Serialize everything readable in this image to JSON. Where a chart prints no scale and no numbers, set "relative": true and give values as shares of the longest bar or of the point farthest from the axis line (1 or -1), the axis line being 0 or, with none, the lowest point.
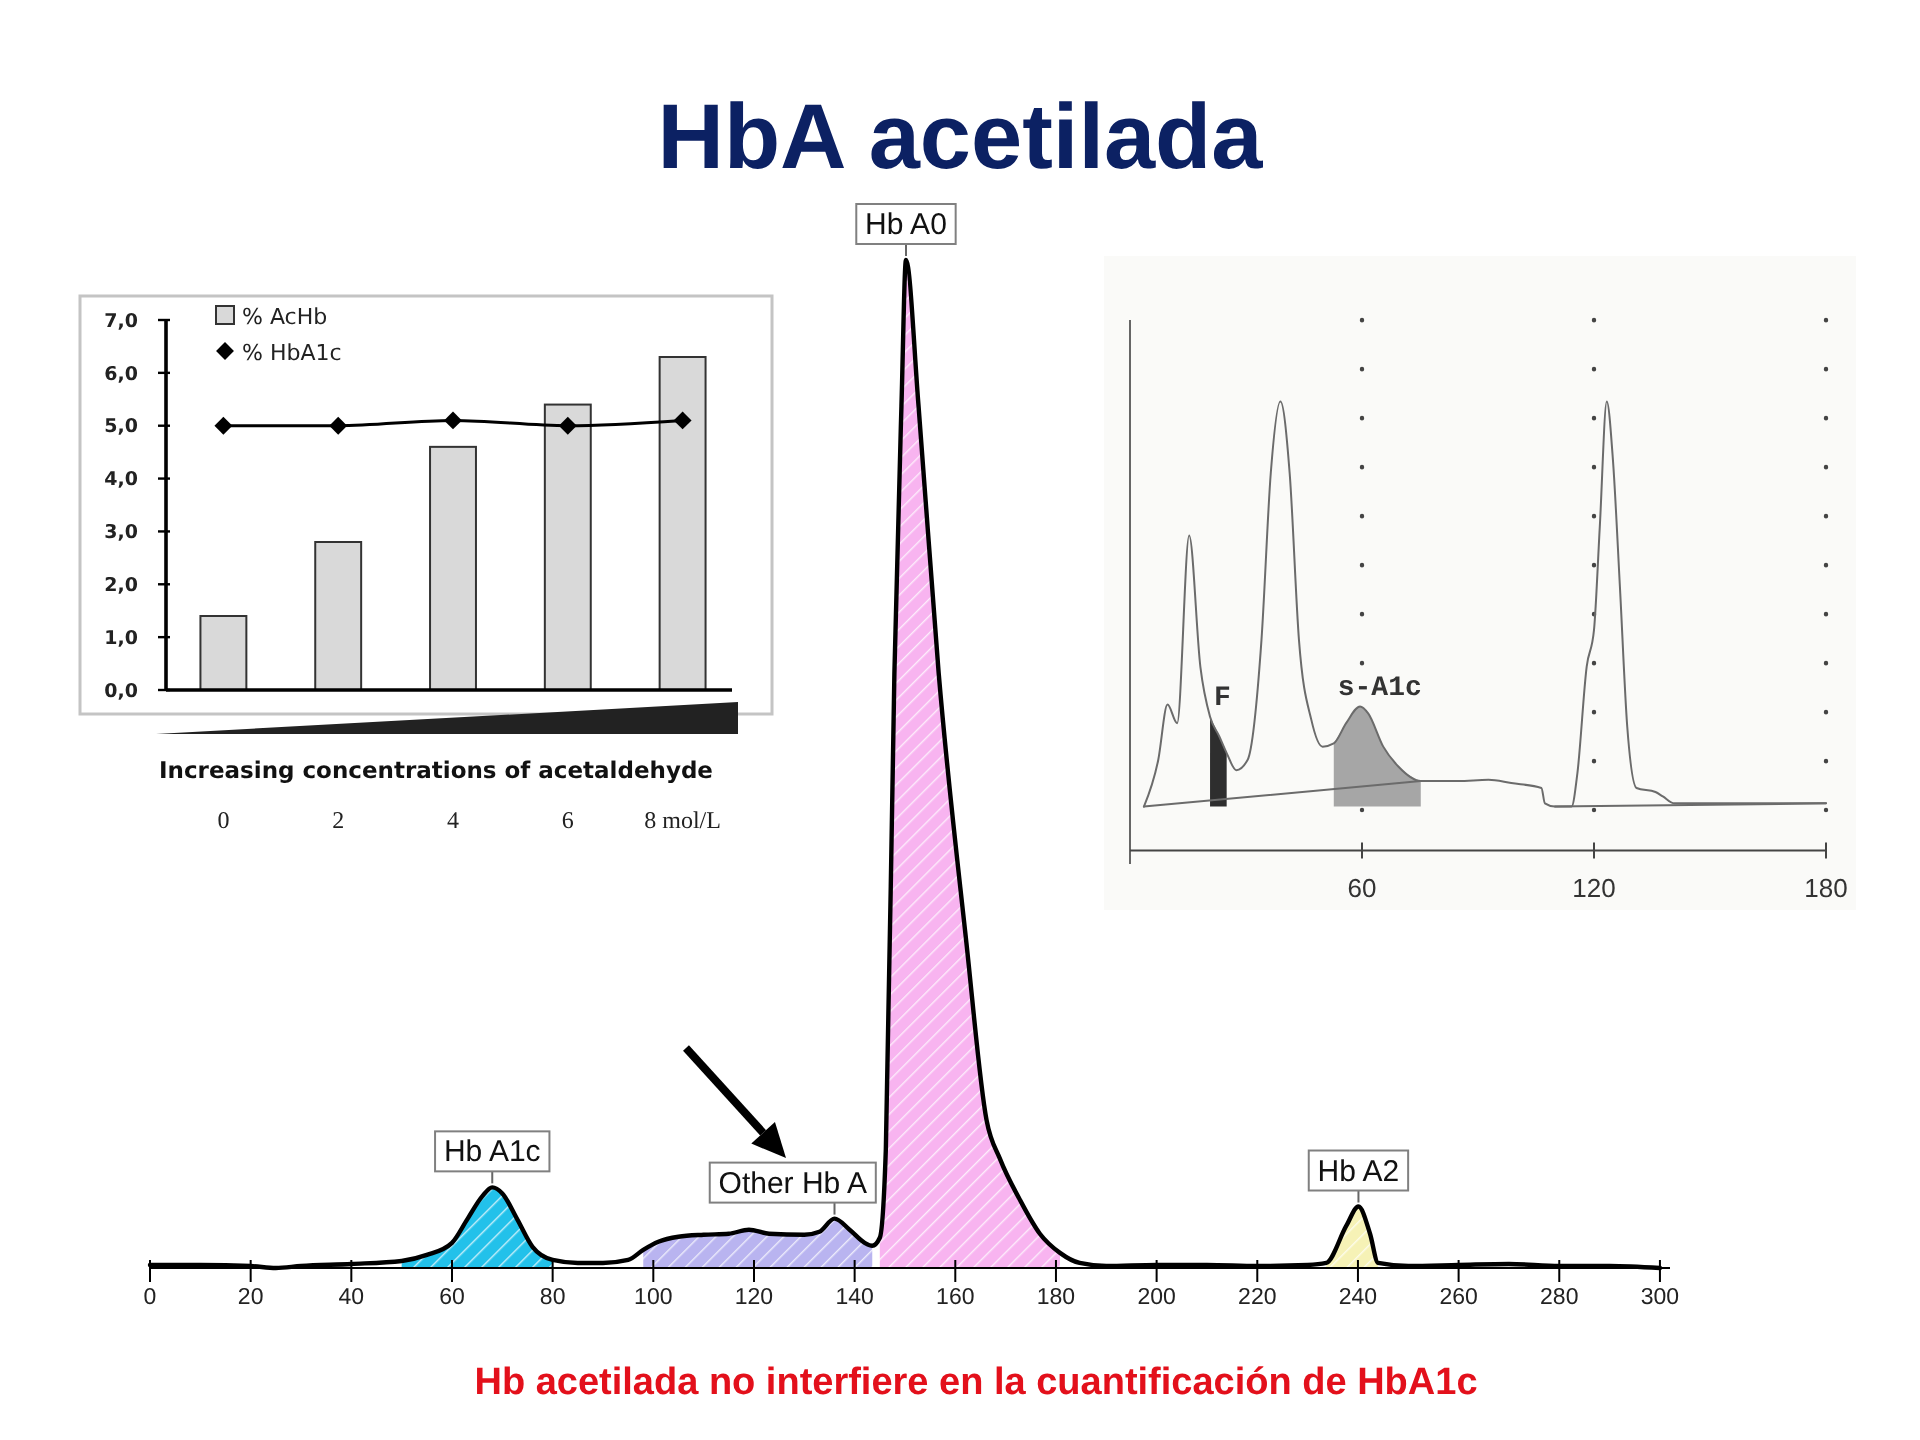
{
  "chart_data": [
    {
      "type": "bar",
      "xlabel": "Increasing concentrations of acetaldehyde",
      "categories": [
        "0",
        "2",
        "4",
        "6",
        "8 mol/L"
      ],
      "series": [
        {
          "name": "% AcHb",
          "color": "#d9d9d9",
          "values": [
            1.4,
            2.8,
            4.6,
            5.4,
            6.3
          ]
        },
        {
          "name": "% HbA1c",
          "type": "line",
          "color": "#000000",
          "values": [
            5.0,
            5.0,
            5.1,
            5.0,
            5.1
          ]
        }
      ],
      "ylim": [
        0,
        7
      ],
      "yticks": [
        {
          "value": 0,
          "label": "0,0"
        },
        {
          "value": 1,
          "label": "1,0"
        },
        {
          "value": 2,
          "label": "2,0"
        },
        {
          "value": 3,
          "label": "3,0"
        },
        {
          "value": 4,
          "label": "4,0"
        },
        {
          "value": 5,
          "label": "5,0"
        },
        {
          "value": 6,
          "label": "6,0"
        },
        {
          "value": 7,
          "label": "7,0"
        }
      ],
      "legend": "top left",
      "marker": "diamond"
    },
    {
      "type": "line",
      "relative": true,
      "xlim": [
        0,
        180
      ],
      "xticks": [
        60,
        120,
        180
      ],
      "grid": "x",
      "series": [
        {
          "color": "#6b6b6b",
          "x": [
            3.6,
            7.3,
            9.7,
            12.2,
            15.3,
            18.2,
            20.7,
            23.1,
            25,
            27.5,
            30.4,
            34,
            36.4,
            38.9,
            41.3,
            43.7,
            46.9,
            49.8,
            52.7,
            55.9,
            59.5,
            61.6,
            65.5,
            69.4,
            75.2,
            84.9,
            92.7,
            98.6,
            106.4,
            107.3,
            109.9,
            114.2,
            115.7,
            118.1,
            120,
            121.5,
            123.3,
            124.9,
            126.7,
            128.6,
            131,
            135.9,
            137.8,
            140.8,
            180
          ],
          "values": [
            0,
            0.115,
            0.252,
            0.206,
            0.669,
            0.345,
            0.222,
            0.173,
            0.132,
            0.09,
            0.115,
            0.411,
            0.822,
            1,
            0.822,
            0.411,
            0.214,
            0.148,
            0.156,
            0.206,
            0.247,
            0.23,
            0.148,
            0.099,
            0.063,
            0.063,
            0.066,
            0.058,
            0.046,
            0.008,
            0,
            0,
            0.082,
            0.345,
            0.436,
            0.691,
            1,
            0.855,
            0.543,
            0.197,
            0.046,
            0.036,
            0.025,
            0.008,
            0.008
          ]
        },
        {
          "color": "#6b6b6b",
          "x": [
            3.6,
            75.2
          ],
          "values": [
            0,
            0.063
          ]
        },
        {
          "color": "#6b6b6b",
          "x": [
            109.9,
            180
          ],
          "values": [
            0,
            0.008
          ]
        },
        {
          "name": "F",
          "type": "area",
          "color": "#2e2e2e",
          "x": [
            20.7,
            23.1,
            25
          ],
          "values": [
            0.222,
            0.173,
            0.132
          ]
        },
        {
          "name": "s-A1c",
          "type": "area",
          "color": "#a6a6a6",
          "x": [
            52.7,
            55.9,
            59.5,
            61.6,
            65.5,
            69.4,
            75.2
          ],
          "values": [
            0.156,
            0.206,
            0.247,
            0.23,
            0.148,
            0.099,
            0.063
          ]
        }
      ]
    },
    {
      "type": "line",
      "title": "HbA acetilada",
      "relative": true,
      "xlim": [
        0,
        302
      ],
      "xticks": [
        0,
        20,
        40,
        60,
        80,
        100,
        120,
        140,
        160,
        180,
        200,
        220,
        240,
        260,
        280,
        300
      ],
      "annotations": [
        "Hb acetilada no interfiere en la cuantificación de HbA1c"
      ],
      "series": [
        {
          "color": "#000000",
          "x": [
            0,
            10,
            20,
            25,
            30,
            40,
            50,
            55,
            60,
            63,
            66,
            68,
            70,
            73,
            76,
            80,
            85,
            90,
            95,
            98,
            101,
            105,
            110,
            115,
            119,
            123,
            130,
            133,
            136,
            139,
            142,
            143.5,
            145,
            146.2,
            147.9,
            149.3,
            150.2,
            152.7,
            156.7,
            162.2,
            166.2,
            168.9,
            172.8,
            176.8,
            180.8,
            184.7,
            190,
            200,
            210,
            220,
            230,
            233.7,
            237.7,
            240.1,
            242.4,
            244,
            250,
            260,
            270,
            280,
            290,
            300
          ],
          "values": [
            0.003,
            0.003,
            0.002,
            0,
            0.002,
            0.004,
            0.007,
            0.013,
            0.025,
            0.048,
            0.071,
            0.08,
            0.074,
            0.048,
            0.021,
            0.008,
            0.005,
            0.005,
            0.008,
            0.018,
            0.026,
            0.031,
            0.033,
            0.034,
            0.038,
            0.034,
            0.033,
            0.036,
            0.049,
            0.038,
            0.025,
            0.022,
            0.03,
            0.118,
            0.59,
            0.855,
            1,
            0.855,
            0.59,
            0.323,
            0.147,
            0.108,
            0.068,
            0.034,
            0.015,
            0.005,
            0.002,
            0.003,
            0.003,
            0.002,
            0.003,
            0.005,
            0.042,
            0.061,
            0.034,
            0.005,
            0.002,
            0.003,
            0.004,
            0.002,
            0.002,
            0
          ]
        },
        {
          "name": "Hb A1c",
          "type": "area",
          "color": "#22c1ea",
          "x": [
            50,
            55,
            60,
            63,
            66,
            68,
            70,
            73,
            76,
            80
          ],
          "values": [
            0.007,
            0.013,
            0.025,
            0.048,
            0.071,
            0.08,
            0.074,
            0.048,
            0.021,
            0.008
          ]
        },
        {
          "name": "Other Hb A",
          "type": "area",
          "color": "#b9b4f0",
          "x": [
            98,
            101,
            105,
            110,
            115,
            119,
            123,
            130,
            133,
            136,
            139,
            142,
            143.5
          ],
          "values": [
            0.018,
            0.026,
            0.031,
            0.033,
            0.034,
            0.038,
            0.034,
            0.033,
            0.036,
            0.049,
            0.038,
            0.025,
            0.022
          ]
        },
        {
          "name": "Hb A0",
          "type": "area",
          "color": "#f8b4f0",
          "x": [
            145,
            146.2,
            147.9,
            149.3,
            150.2,
            152.7,
            156.7,
            162.2,
            166.2,
            168.9,
            172.8,
            176.8,
            180.8
          ],
          "values": [
            0.03,
            0.118,
            0.59,
            0.855,
            1,
            0.855,
            0.59,
            0.323,
            0.147,
            0.108,
            0.068,
            0.034,
            0.015
          ]
        },
        {
          "name": "Hb A2",
          "type": "area",
          "color": "#f6f2b6",
          "x": [
            233.7,
            237.7,
            240.1,
            242.4,
            244
          ],
          "values": [
            0.005,
            0.042,
            0.061,
            0.034,
            0.005
          ]
        }
      ]
    }
  ]
}
